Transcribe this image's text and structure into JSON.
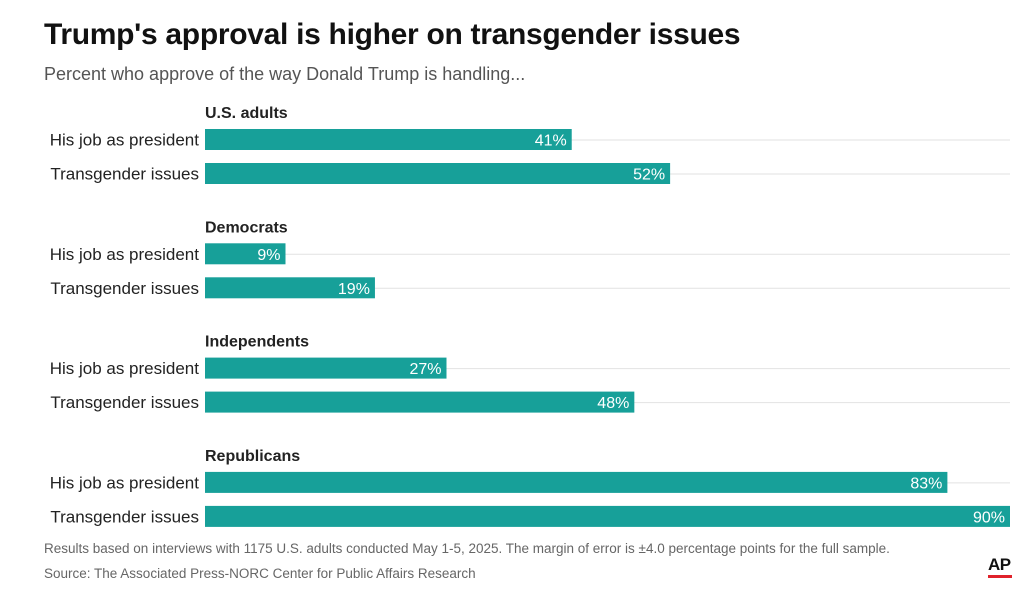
{
  "header": {
    "title": "Trump's approval is higher on transgender issues",
    "subtitle": "Percent who approve of the way Donald Trump is handling..."
  },
  "footer": {
    "note": "Results based on interviews with 1175 U.S. adults conducted May 1-5, 2025. The margin of error is ±4.0 percentage points for the full sample.",
    "source": "Source: The Associated Press-NORC Center for Public Affairs Research",
    "logo": "AP"
  },
  "colors": {
    "bar": "#17a099",
    "bar_label": "#ffffff",
    "group_label": "#222222",
    "category_label": "#222222",
    "gridline": "#e2e2e2",
    "logo_accent": "#e0222b"
  },
  "chart_data": {
    "type": "bar",
    "orientation": "horizontal",
    "unit": "%",
    "xlim": [
      0,
      90
    ],
    "grid": false,
    "legend": "none",
    "groups": [
      {
        "name": "U.S. adults",
        "categories": [
          "His job as president",
          "Transgender issues"
        ],
        "values": [
          41,
          52
        ]
      },
      {
        "name": "Democrats",
        "categories": [
          "His job as president",
          "Transgender issues"
        ],
        "values": [
          9,
          19
        ]
      },
      {
        "name": "Independents",
        "categories": [
          "His job as president",
          "Transgender issues"
        ],
        "values": [
          27,
          48
        ]
      },
      {
        "name": "Republicans",
        "categories": [
          "His job as president",
          "Transgender issues"
        ],
        "values": [
          83,
          90
        ]
      }
    ]
  }
}
